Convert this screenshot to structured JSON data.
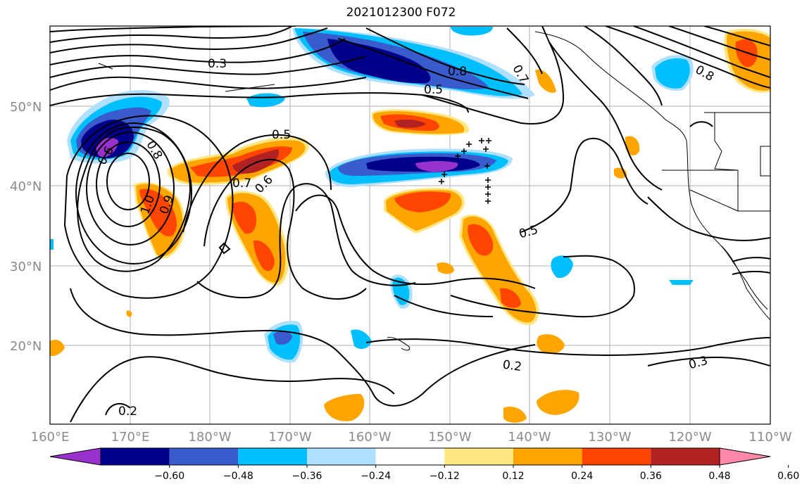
{
  "title": "2021012300 F072",
  "map": {
    "lon_ticks": [
      "160°E",
      "170°E",
      "180°W",
      "170°W",
      "160°W",
      "150°W",
      "140°W",
      "130°W",
      "120°W",
      "110°W"
    ],
    "lat_ticks": [
      "20°N",
      "30°N",
      "40°N",
      "50°N"
    ],
    "contour_labels": [
      "0.3",
      "0.8",
      "0.7",
      "0.5",
      "0.8",
      "0.5",
      "0.8",
      "0.6",
      "0.7",
      "0.6",
      "1.0",
      "0.9",
      "0.5",
      "0.2",
      "0.3",
      "0.2"
    ]
  },
  "colorbar": {
    "ticks": [
      "−0.60",
      "−0.48",
      "−0.36",
      "−0.24",
      "−0.12",
      "0.12",
      "0.24",
      "0.36",
      "0.48",
      "0.60"
    ],
    "colors": [
      "#9932cc",
      "#00008b",
      "#3a5bcc",
      "#00bfff",
      "#b0e0ff",
      "#ffffff",
      "#ffe680",
      "#ffa500",
      "#ff4500",
      "#b22222",
      "#ff88aa"
    ]
  }
}
